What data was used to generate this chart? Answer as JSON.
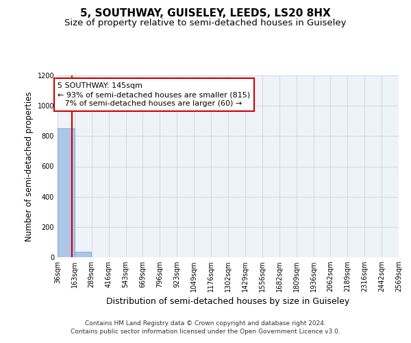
{
  "title": "5, SOUTHWAY, GUISELEY, LEEDS, LS20 8HX",
  "subtitle": "Size of property relative to semi-detached houses in Guiseley",
  "xlabel": "Distribution of semi-detached houses by size in Guiseley",
  "ylabel": "Number of semi-detached properties",
  "footer_line1": "Contains HM Land Registry data © Crown copyright and database right 2024.",
  "footer_line2": "Contains public sector information licensed under the Open Government Licence v3.0.",
  "bin_edges": [
    36,
    163,
    289,
    416,
    543,
    669,
    796,
    923,
    1049,
    1176,
    1302,
    1429,
    1556,
    1682,
    1809,
    1936,
    2062,
    2189,
    2316,
    2442,
    2569
  ],
  "bar_heights": [
    850,
    35,
    0,
    0,
    0,
    0,
    0,
    0,
    0,
    0,
    0,
    0,
    0,
    0,
    0,
    0,
    0,
    0,
    0,
    0
  ],
  "bar_color": "#aec6e8",
  "bar_edgecolor": "#5a9fd4",
  "grid_color": "#cccccc",
  "background_color": "#eef2f9",
  "property_size": 145,
  "property_label": "5 SOUTHWAY: 145sqm",
  "pct_smaller": 93,
  "count_smaller": 815,
  "pct_larger": 7,
  "count_larger": 60,
  "red_line_color": "#cc0000",
  "annotation_box_edgecolor": "#cc0000",
  "ylim": [
    0,
    1200
  ],
  "title_fontsize": 11,
  "subtitle_fontsize": 9.5,
  "xlabel_fontsize": 9,
  "ylabel_fontsize": 8.5,
  "tick_fontsize": 7,
  "annotation_fontsize": 8,
  "footer_fontsize": 6.5
}
